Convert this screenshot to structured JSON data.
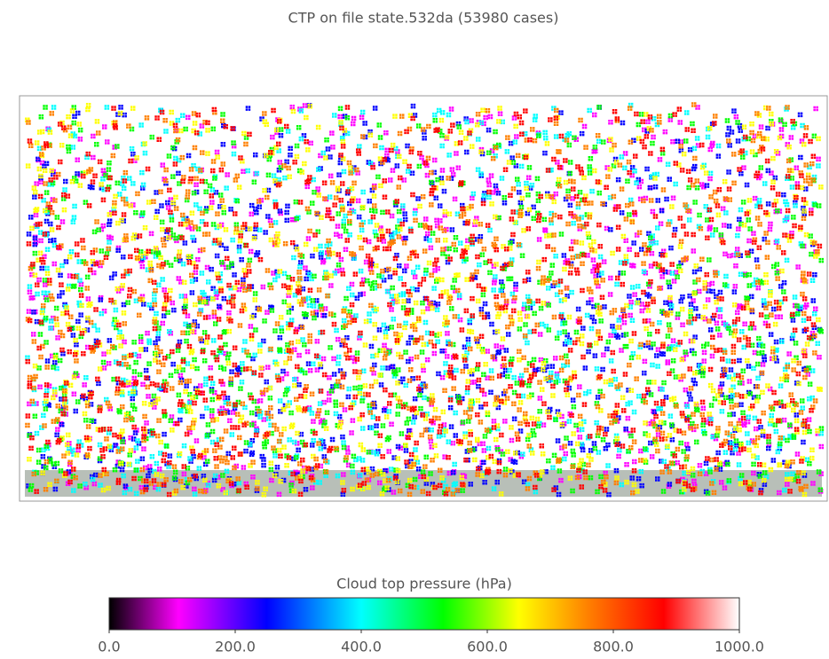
{
  "chart_data": {
    "type": "scatter",
    "title": "CTP on file state.532da (53980 cases)",
    "colorbar": {
      "label": "Cloud top pressure (hPa)",
      "lim": [
        0,
        1000
      ],
      "ticks": [
        {
          "value": 0,
          "label": "0.0"
        },
        {
          "value": 200,
          "label": "200.0"
        },
        {
          "value": 400,
          "label": "400.0"
        },
        {
          "value": 600,
          "label": "600.0"
        },
        {
          "value": 800,
          "label": "800.0"
        },
        {
          "value": 1000,
          "label": "1000.0"
        }
      ],
      "stops": [
        0,
        110,
        250,
        400,
        530,
        650,
        760,
        880,
        1000
      ],
      "colors": [
        "#000000",
        "#ff00ff",
        "#0000ff",
        "#00ffff",
        "#00ff00",
        "#ffff00",
        "#ff8000",
        "#ff0000",
        "#ffffff"
      ]
    }
  }
}
